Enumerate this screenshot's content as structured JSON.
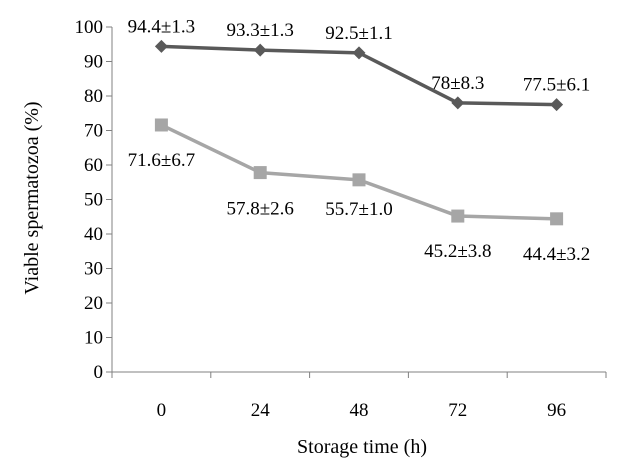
{
  "chart_data": {
    "type": "line",
    "title": "",
    "xlabel": "Storage time (h)",
    "ylabel": "Viable spermatozoa (%)",
    "categories": [
      "0",
      "24",
      "48",
      "72",
      "96"
    ],
    "ylim": [
      0,
      100
    ],
    "ytick_step": 10,
    "yticks": [
      "0",
      "10",
      "20",
      "30",
      "40",
      "50",
      "60",
      "70",
      "80",
      "90",
      "100"
    ],
    "grid": false,
    "legend": "none",
    "series": [
      {
        "marker": "diamond",
        "color": "#595959",
        "values": [
          94.4,
          93.3,
          92.5,
          78,
          77.5
        ],
        "labels": [
          "94.4±1.3",
          "93.3±1.3",
          "92.5±1.1",
          "78±8.3",
          "77.5±6.1"
        ],
        "label_position": "above"
      },
      {
        "marker": "square",
        "color": "#a6a6a6",
        "values": [
          71.6,
          57.8,
          55.7,
          45.2,
          44.4
        ],
        "labels": [
          "71.6±6.7",
          "57.8±2.6",
          "55.7±1.0",
          "45.2±3.8",
          "44.4±3.2"
        ],
        "label_position": "below"
      }
    ]
  }
}
